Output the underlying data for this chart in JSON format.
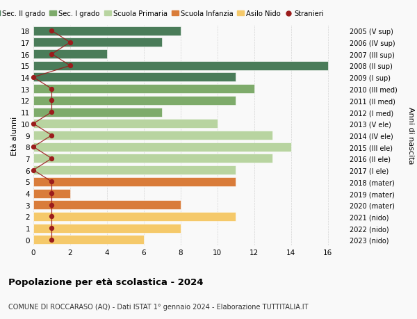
{
  "ages": [
    18,
    17,
    16,
    15,
    14,
    13,
    12,
    11,
    10,
    9,
    8,
    7,
    6,
    5,
    4,
    3,
    2,
    1,
    0
  ],
  "right_labels": [
    "2005 (V sup)",
    "2006 (IV sup)",
    "2007 (III sup)",
    "2008 (II sup)",
    "2009 (I sup)",
    "2010 (III med)",
    "2011 (II med)",
    "2012 (I med)",
    "2013 (V ele)",
    "2014 (IV ele)",
    "2015 (III ele)",
    "2016 (II ele)",
    "2017 (I ele)",
    "2018 (mater)",
    "2019 (mater)",
    "2020 (mater)",
    "2021 (nido)",
    "2022 (nido)",
    "2023 (nido)"
  ],
  "bar_values": [
    8,
    7,
    4,
    16,
    11,
    12,
    11,
    7,
    10,
    13,
    14,
    13,
    11,
    11,
    2,
    8,
    11,
    8,
    6
  ],
  "bar_colors": [
    "#4a7c59",
    "#4a7c59",
    "#4a7c59",
    "#4a7c59",
    "#4a7c59",
    "#7eab6b",
    "#7eab6b",
    "#7eab6b",
    "#b8d4a0",
    "#b8d4a0",
    "#b8d4a0",
    "#b8d4a0",
    "#b8d4a0",
    "#d97c3a",
    "#d97c3a",
    "#d97c3a",
    "#f5c96a",
    "#f5c96a",
    "#f5c96a"
  ],
  "stranieri_x": [
    1,
    2,
    1,
    2,
    0,
    1,
    1,
    1,
    0,
    1,
    0,
    1,
    0,
    1,
    1,
    1,
    1,
    1,
    1
  ],
  "legend_labels": [
    "Sec. II grado",
    "Sec. I grado",
    "Scuola Primaria",
    "Scuola Infanzia",
    "Asilo Nido",
    "Stranieri"
  ],
  "legend_colors": [
    "#4a7c59",
    "#7eab6b",
    "#b8d4a0",
    "#d97c3a",
    "#f5c96a",
    "#9b1c1c"
  ],
  "title": "Popolazione per età scolastica - 2024",
  "subtitle": "COMUNE DI ROCCARASO (AQ) - Dati ISTAT 1° gennaio 2024 - Elaborazione TUTTITALIA.IT",
  "ylabel_left": "Età alunni",
  "ylabel_right": "Anni di nascita",
  "xlim": [
    0,
    17
  ],
  "ylim": [
    -0.5,
    18.5
  ],
  "bar_height": 0.78,
  "background_color": "#f9f9f9",
  "grid_color": "#cccccc",
  "stranieri_color": "#9b1c1c"
}
